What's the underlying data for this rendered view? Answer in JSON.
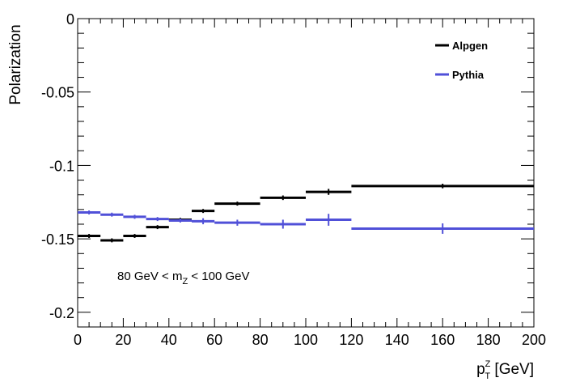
{
  "chart_data": {
    "type": "line",
    "render": "step-with-error-bars",
    "title": "",
    "xlabel": {
      "main": "p",
      "sup": "Z",
      "sub": "T",
      "unit": " [GeV]"
    },
    "ylabel": "Polarization",
    "xlim": [
      0,
      200
    ],
    "ylim": [
      -0.21,
      0
    ],
    "xticks": [
      0,
      20,
      40,
      60,
      80,
      100,
      120,
      140,
      160,
      180,
      200
    ],
    "xtick_labels": [
      "0",
      "20",
      "40",
      "60",
      "80",
      "100",
      "120",
      "140",
      "160",
      "180",
      "200"
    ],
    "yticks": [
      0,
      -0.05,
      -0.1,
      -0.15,
      -0.2
    ],
    "ytick_labels": [
      "0",
      "-0.05",
      "-0.1",
      "-0.15",
      "-0.2"
    ],
    "grid": false,
    "legend_position": "top-right",
    "annotation": {
      "pre": "80 GeV < m",
      "sub": "Z",
      "post": " < 100 GeV"
    },
    "series": [
      {
        "name": "Alpgen",
        "color": "#000000",
        "bins": [
          {
            "x0": 0,
            "x1": 10,
            "y": -0.148,
            "err": 0.0008
          },
          {
            "x0": 10,
            "x1": 20,
            "y": -0.151,
            "err": 0.0008
          },
          {
            "x0": 20,
            "x1": 30,
            "y": -0.148,
            "err": 0.0008
          },
          {
            "x0": 30,
            "x1": 40,
            "y": -0.142,
            "err": 0.0008
          },
          {
            "x0": 40,
            "x1": 50,
            "y": -0.137,
            "err": 0.0008
          },
          {
            "x0": 50,
            "x1": 60,
            "y": -0.131,
            "err": 0.0008
          },
          {
            "x0": 60,
            "x1": 80,
            "y": -0.126,
            "err": 0.0008
          },
          {
            "x0": 80,
            "x1": 100,
            "y": -0.122,
            "err": 0.001
          },
          {
            "x0": 100,
            "x1": 120,
            "y": -0.118,
            "err": 0.0015
          },
          {
            "x0": 120,
            "x1": 200,
            "y": -0.114,
            "err": 0.001
          }
        ]
      },
      {
        "name": "Pythia",
        "color": "#5050d8",
        "bins": [
          {
            "x0": 0,
            "x1": 10,
            "y": -0.132,
            "err": 0.0008
          },
          {
            "x0": 10,
            "x1": 20,
            "y": -0.1335,
            "err": 0.0008
          },
          {
            "x0": 20,
            "x1": 30,
            "y": -0.135,
            "err": 0.0008
          },
          {
            "x0": 30,
            "x1": 40,
            "y": -0.1365,
            "err": 0.0008
          },
          {
            "x0": 40,
            "x1": 50,
            "y": -0.1375,
            "err": 0.0008
          },
          {
            "x0": 50,
            "x1": 60,
            "y": -0.138,
            "err": 0.0015
          },
          {
            "x0": 60,
            "x1": 80,
            "y": -0.139,
            "err": 0.0015
          },
          {
            "x0": 80,
            "x1": 100,
            "y": -0.14,
            "err": 0.0025
          },
          {
            "x0": 100,
            "x1": 120,
            "y": -0.137,
            "err": 0.0035
          },
          {
            "x0": 120,
            "x1": 200,
            "y": -0.143,
            "err": 0.003
          }
        ]
      }
    ]
  }
}
